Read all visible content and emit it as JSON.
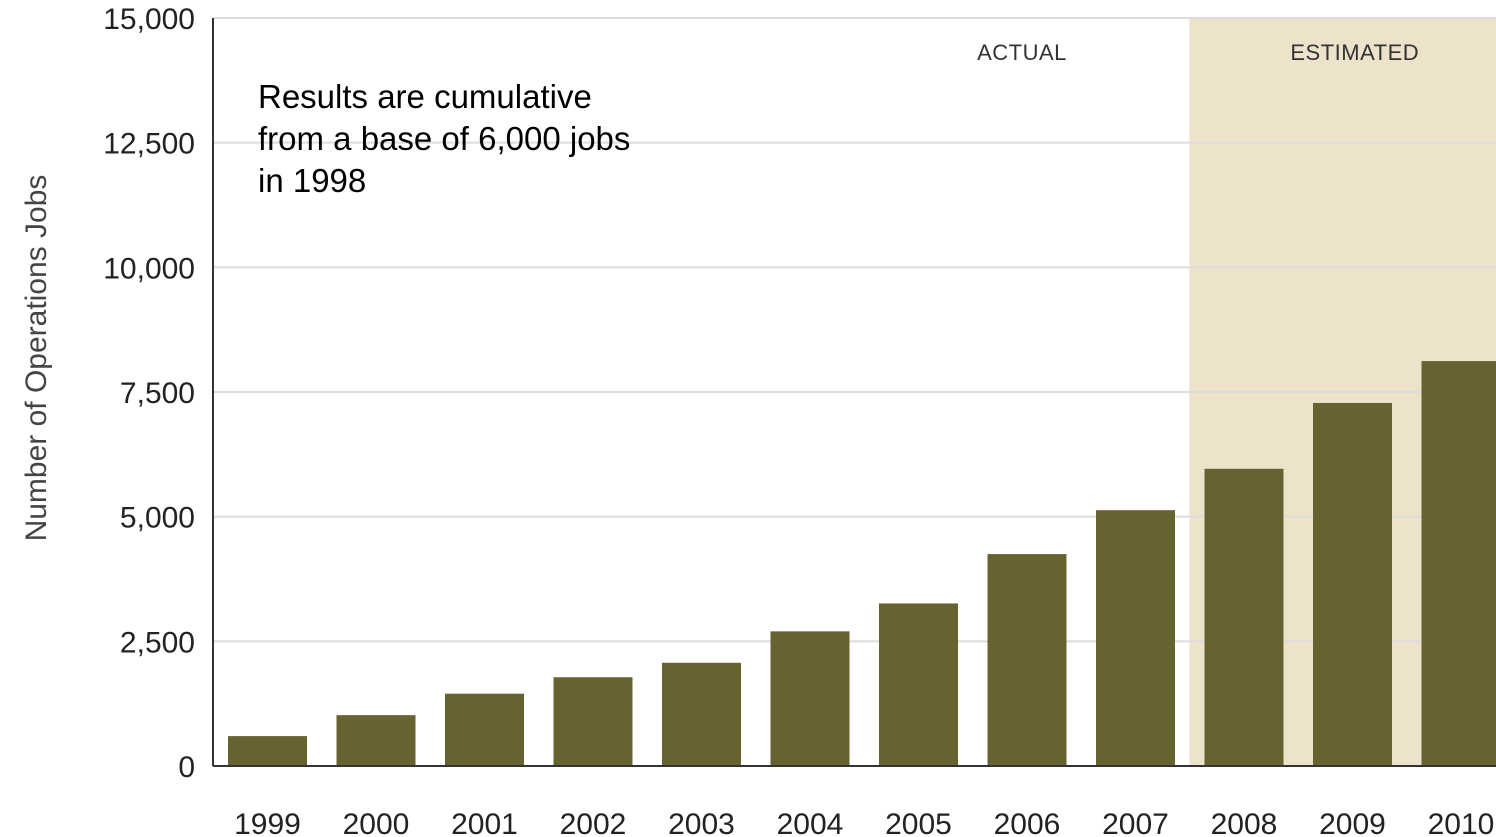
{
  "chart_data": {
    "type": "bar",
    "title": "",
    "ylabel": "Number of Operations Jobs",
    "xlabel": "",
    "ylim": [
      0,
      15000
    ],
    "yticks": [
      0,
      2500,
      5000,
      7500,
      10000,
      12500,
      15000
    ],
    "ytick_labels": [
      "0",
      "2,500",
      "5,000",
      "7,500",
      "10,000",
      "12,500",
      "15,000"
    ],
    "categories": [
      "1999",
      "2000",
      "2001",
      "2002",
      "2003",
      "2004",
      "2005",
      "2006",
      "2007",
      "2008",
      "2009",
      "2010"
    ],
    "values": [
      600,
      1020,
      1450,
      1780,
      2070,
      2700,
      3260,
      4250,
      5130,
      5960,
      7280,
      8120
    ],
    "grid": true,
    "regions": [
      {
        "label": "ACTUAL",
        "categories": [
          "1999",
          "2007"
        ]
      },
      {
        "label": "ESTIMATED",
        "categories": [
          "2008",
          "2010"
        ]
      }
    ],
    "annotation": [
      "Results are cumulative",
      "from a base of 6,000 jobs",
      "in 1998"
    ],
    "colors": {
      "bar": "#676331",
      "estimated_bg": "#ede3cb",
      "grid": "#dcdcdc",
      "axis": "#333333"
    }
  }
}
